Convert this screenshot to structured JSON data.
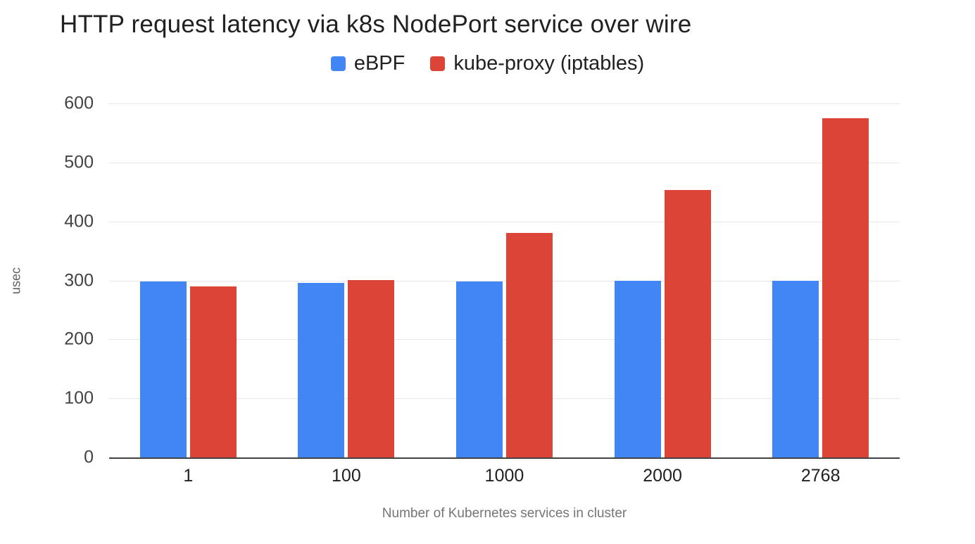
{
  "chart_data": {
    "type": "bar",
    "title": "HTTP request latency via k8s NodePort service over wire",
    "categories": [
      "1",
      "100",
      "1000",
      "2000",
      "2768"
    ],
    "series": [
      {
        "name": "eBPF",
        "color": "#4285F4",
        "values": [
          298,
          296,
          298,
          300,
          300
        ]
      },
      {
        "name": "kube-proxy (iptables)",
        "color": "#DB4437",
        "values": [
          290,
          301,
          380,
          453,
          575
        ]
      }
    ],
    "xlabel": "Number of Kubernetes services in cluster",
    "ylabel": "usec",
    "ylim": [
      0,
      600
    ],
    "ytick_step": 100,
    "grid": true,
    "legend_position": "top",
    "colors": {
      "gridline": "#e6e6e6",
      "axis_line": "#424242",
      "title_text": "#212121",
      "tick_text": "#424242",
      "axis_title_text": "#757575"
    }
  }
}
